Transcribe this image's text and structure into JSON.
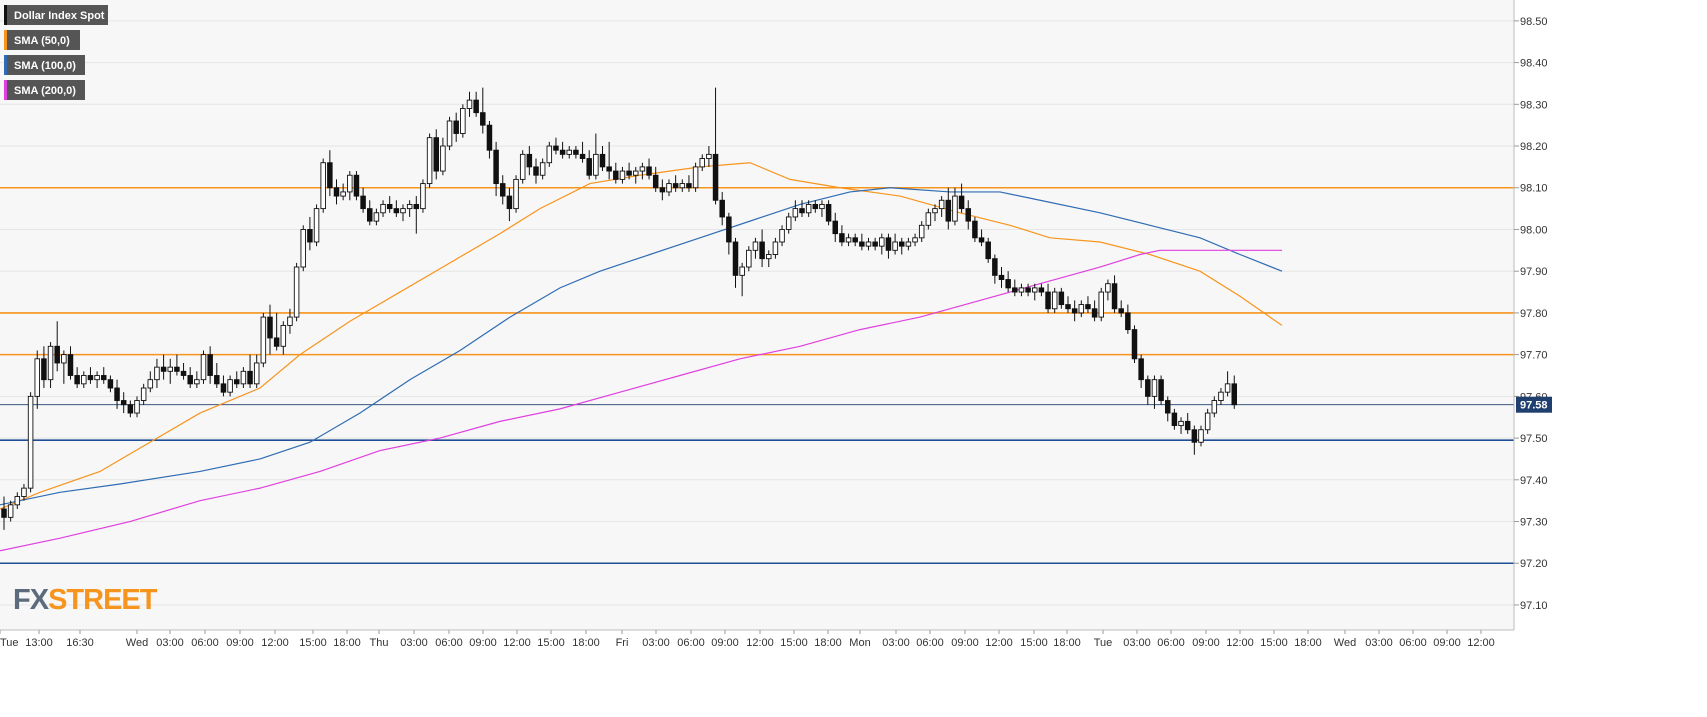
{
  "chart_data": {
    "type": "candlestick",
    "instrument": "Dollar Index Spot",
    "legend": [
      {
        "label": "Dollar Index Spot",
        "color": "#111111"
      },
      {
        "label": "SMA (50,0)",
        "color": "#f7941d"
      },
      {
        "label": "SMA (100,0)",
        "color": "#2f6cb3"
      },
      {
        "label": "SMA (200,0)",
        "color": "#e040e0"
      }
    ],
    "ylim": [
      97.04,
      98.55
    ],
    "y_ticks": [
      "98.50",
      "98.40",
      "98.30",
      "98.20",
      "98.10",
      "98.00",
      "97.90",
      "97.80",
      "97.70",
      "97.60",
      "97.50",
      "97.40",
      "97.30",
      "97.20",
      "97.10"
    ],
    "x_ticks": [
      "Tue",
      "13:00",
      "16:30",
      "Wed",
      "03:00",
      "06:00",
      "09:00",
      "12:00",
      "15:00",
      "18:00",
      "Thu",
      "03:00",
      "06:00",
      "09:00",
      "12:00",
      "15:00",
      "18:00",
      "Fri",
      "03:00",
      "06:00",
      "09:00",
      "12:00",
      "15:00",
      "18:00",
      "Mon",
      "03:00",
      "06:00",
      "09:00",
      "12:00",
      "15:00",
      "18:00",
      "Tue",
      "03:00",
      "06:00",
      "09:00",
      "12:00",
      "15:00",
      "18:00",
      "Wed",
      "03:00",
      "06:00",
      "09:00",
      "12:00"
    ],
    "last_price": "97.58",
    "horizontal_levels": [
      {
        "value": 98.1,
        "color": "#f7941d"
      },
      {
        "value": 97.8,
        "color": "#f7941d"
      },
      {
        "value": 97.7,
        "color": "#f7941d"
      },
      {
        "value": 97.495,
        "color": "#1f4e96"
      },
      {
        "value": 97.2,
        "color": "#1f4e96"
      }
    ],
    "ohlc": [
      [
        97.33,
        97.36,
        97.28,
        97.31
      ],
      [
        97.31,
        97.35,
        97.3,
        97.34
      ],
      [
        97.34,
        97.37,
        97.33,
        97.36
      ],
      [
        97.36,
        97.39,
        97.35,
        97.38
      ],
      [
        97.38,
        97.61,
        97.37,
        97.6
      ],
      [
        97.6,
        97.71,
        97.57,
        97.69
      ],
      [
        97.69,
        97.72,
        97.62,
        97.64
      ],
      [
        97.64,
        97.73,
        97.62,
        97.72
      ],
      [
        97.72,
        97.78,
        97.66,
        97.68
      ],
      [
        97.68,
        97.71,
        97.63,
        97.7
      ],
      [
        97.7,
        97.72,
        97.64,
        97.65
      ],
      [
        97.65,
        97.67,
        97.62,
        97.63
      ],
      [
        97.63,
        97.66,
        97.62,
        97.65
      ],
      [
        97.65,
        97.67,
        97.63,
        97.64
      ],
      [
        97.64,
        97.66,
        97.62,
        97.65
      ],
      [
        97.65,
        97.67,
        97.63,
        97.64
      ],
      [
        97.64,
        97.65,
        97.61,
        97.62
      ],
      [
        97.62,
        97.64,
        97.57,
        97.59
      ],
      [
        97.59,
        97.61,
        97.56,
        97.58
      ],
      [
        97.58,
        97.59,
        97.55,
        97.56
      ],
      [
        97.56,
        97.6,
        97.55,
        97.59
      ],
      [
        97.59,
        97.63,
        97.58,
        97.62
      ],
      [
        97.62,
        97.66,
        97.61,
        97.64
      ],
      [
        97.64,
        97.69,
        97.62,
        97.67
      ],
      [
        97.67,
        97.7,
        97.64,
        97.66
      ],
      [
        97.66,
        97.69,
        97.63,
        97.67
      ],
      [
        97.67,
        97.7,
        97.65,
        97.66
      ],
      [
        97.66,
        97.68,
        97.64,
        97.65
      ],
      [
        97.65,
        97.67,
        97.62,
        97.63
      ],
      [
        97.63,
        97.66,
        97.62,
        97.64
      ],
      [
        97.64,
        97.71,
        97.63,
        97.7
      ],
      [
        97.7,
        97.72,
        97.63,
        97.65
      ],
      [
        97.65,
        97.68,
        97.62,
        97.63
      ],
      [
        97.63,
        97.65,
        97.6,
        97.61
      ],
      [
        97.61,
        97.65,
        97.6,
        97.64
      ],
      [
        97.64,
        97.66,
        97.62,
        97.63
      ],
      [
        97.63,
        97.67,
        97.62,
        97.66
      ],
      [
        97.66,
        97.7,
        97.62,
        97.63
      ],
      [
        97.63,
        97.7,
        97.62,
        97.68
      ],
      [
        97.68,
        97.8,
        97.67,
        97.79
      ],
      [
        97.79,
        97.82,
        97.7,
        97.74
      ],
      [
        97.74,
        97.8,
        97.71,
        97.72
      ],
      [
        97.72,
        97.78,
        97.7,
        97.77
      ],
      [
        97.77,
        97.81,
        97.75,
        97.79
      ],
      [
        97.79,
        97.92,
        97.78,
        97.91
      ],
      [
        97.91,
        98.01,
        97.9,
        98.0
      ],
      [
        98.0,
        98.03,
        97.95,
        97.97
      ],
      [
        97.97,
        98.06,
        97.96,
        98.05
      ],
      [
        98.05,
        98.17,
        98.04,
        98.16
      ],
      [
        98.16,
        98.19,
        98.08,
        98.1
      ],
      [
        98.1,
        98.12,
        98.06,
        98.08
      ],
      [
        98.08,
        98.11,
        98.07,
        98.09
      ],
      [
        98.09,
        98.14,
        98.07,
        98.13
      ],
      [
        98.13,
        98.14,
        98.07,
        98.08
      ],
      [
        98.08,
        98.1,
        98.04,
        98.05
      ],
      [
        98.05,
        98.07,
        98.01,
        98.02
      ],
      [
        98.02,
        98.05,
        98.01,
        98.04
      ],
      [
        98.04,
        98.07,
        98.03,
        98.06
      ],
      [
        98.06,
        98.08,
        98.04,
        98.05
      ],
      [
        98.05,
        98.07,
        98.03,
        98.04
      ],
      [
        98.04,
        98.06,
        98.02,
        98.05
      ],
      [
        98.05,
        98.07,
        98.03,
        98.06
      ],
      [
        98.06,
        98.08,
        97.99,
        98.05
      ],
      [
        98.05,
        98.12,
        98.04,
        98.11
      ],
      [
        98.11,
        98.23,
        98.1,
        98.22
      ],
      [
        98.22,
        98.24,
        98.12,
        98.14
      ],
      [
        98.14,
        98.22,
        98.13,
        98.2
      ],
      [
        98.2,
        98.27,
        98.19,
        98.26
      ],
      [
        98.26,
        98.28,
        98.21,
        98.23
      ],
      [
        98.23,
        98.3,
        98.22,
        98.29
      ],
      [
        98.29,
        98.33,
        98.27,
        98.31
      ],
      [
        98.31,
        98.33,
        98.27,
        98.28
      ],
      [
        98.28,
        98.34,
        98.23,
        98.25
      ],
      [
        98.25,
        98.26,
        98.17,
        98.19
      ],
      [
        98.19,
        98.21,
        98.08,
        98.11
      ],
      [
        98.11,
        98.13,
        98.06,
        98.08
      ],
      [
        98.08,
        98.1,
        98.02,
        98.05
      ],
      [
        98.05,
        98.13,
        98.04,
        98.12
      ],
      [
        98.12,
        98.19,
        98.11,
        98.18
      ],
      [
        98.18,
        98.2,
        98.13,
        98.15
      ],
      [
        98.15,
        98.17,
        98.11,
        98.13
      ],
      [
        98.13,
        98.17,
        98.12,
        98.16
      ],
      [
        98.16,
        98.21,
        98.15,
        98.2
      ],
      [
        98.2,
        98.22,
        98.18,
        98.19
      ],
      [
        98.19,
        98.21,
        98.17,
        98.18
      ],
      [
        98.18,
        98.2,
        98.17,
        98.19
      ],
      [
        98.19,
        98.2,
        98.17,
        98.18
      ],
      [
        98.18,
        98.21,
        98.16,
        98.17
      ],
      [
        98.17,
        98.19,
        98.12,
        98.13
      ],
      [
        98.13,
        98.23,
        98.12,
        98.18
      ],
      [
        98.18,
        98.2,
        98.14,
        98.15
      ],
      [
        98.15,
        98.21,
        98.12,
        98.14
      ],
      [
        98.14,
        98.16,
        98.11,
        98.12
      ],
      [
        98.12,
        98.15,
        98.11,
        98.14
      ],
      [
        98.14,
        98.16,
        98.12,
        98.13
      ],
      [
        98.13,
        98.15,
        98.11,
        98.14
      ],
      [
        98.14,
        98.16,
        98.12,
        98.15
      ],
      [
        98.15,
        98.17,
        98.12,
        98.13
      ],
      [
        98.13,
        98.15,
        98.09,
        98.1
      ],
      [
        98.1,
        98.12,
        98.07,
        98.09
      ],
      [
        98.09,
        98.12,
        98.08,
        98.11
      ],
      [
        98.11,
        98.13,
        98.09,
        98.1
      ],
      [
        98.1,
        98.12,
        98.09,
        98.11
      ],
      [
        98.11,
        98.13,
        98.09,
        98.1
      ],
      [
        98.1,
        98.16,
        98.09,
        98.15
      ],
      [
        98.15,
        98.18,
        98.14,
        98.17
      ],
      [
        98.17,
        98.2,
        98.15,
        98.18
      ],
      [
        98.18,
        98.34,
        98.06,
        98.07
      ],
      [
        98.07,
        98.09,
        98.01,
        98.03
      ],
      [
        98.03,
        98.04,
        97.94,
        97.97
      ],
      [
        97.97,
        97.98,
        97.86,
        97.89
      ],
      [
        97.89,
        97.92,
        97.84,
        97.91
      ],
      [
        97.91,
        97.96,
        97.9,
        97.95
      ],
      [
        97.95,
        97.98,
        97.93,
        97.97
      ],
      [
        97.97,
        98.0,
        97.91,
        97.93
      ],
      [
        97.93,
        97.95,
        97.91,
        97.94
      ],
      [
        97.94,
        97.98,
        97.93,
        97.97
      ],
      [
        97.97,
        98.01,
        97.96,
        98.0
      ],
      [
        98.0,
        98.04,
        97.99,
        98.03
      ],
      [
        98.03,
        98.07,
        98.02,
        98.05
      ],
      [
        98.05,
        98.07,
        98.03,
        98.04
      ],
      [
        98.04,
        98.07,
        98.03,
        98.06
      ],
      [
        98.06,
        98.07,
        98.04,
        98.05
      ],
      [
        98.05,
        98.07,
        98.03,
        98.06
      ],
      [
        98.06,
        98.07,
        98.01,
        98.02
      ],
      [
        98.02,
        98.04,
        97.97,
        97.99
      ],
      [
        97.99,
        98.01,
        97.96,
        97.97
      ],
      [
        97.97,
        97.99,
        97.96,
        97.98
      ],
      [
        97.98,
        97.99,
        97.96,
        97.97
      ],
      [
        97.97,
        97.99,
        97.95,
        97.96
      ],
      [
        97.96,
        97.98,
        97.95,
        97.97
      ],
      [
        97.97,
        97.98,
        97.95,
        97.96
      ],
      [
        97.96,
        97.99,
        97.94,
        97.98
      ],
      [
        97.98,
        97.99,
        97.93,
        97.95
      ],
      [
        97.95,
        97.99,
        97.94,
        97.97
      ],
      [
        97.97,
        97.98,
        97.94,
        97.96
      ],
      [
        97.96,
        97.98,
        97.95,
        97.97
      ],
      [
        97.97,
        97.99,
        97.96,
        97.98
      ],
      [
        97.98,
        98.02,
        97.97,
        98.01
      ],
      [
        98.01,
        98.05,
        98.0,
        98.04
      ],
      [
        98.04,
        98.06,
        98.02,
        98.05
      ],
      [
        98.05,
        98.08,
        98.03,
        98.07
      ],
      [
        98.07,
        98.1,
        98.0,
        98.02
      ],
      [
        98.02,
        98.1,
        98.01,
        98.08
      ],
      [
        98.08,
        98.11,
        98.04,
        98.05
      ],
      [
        98.05,
        98.07,
        98.0,
        98.02
      ],
      [
        98.02,
        98.03,
        97.97,
        97.98
      ],
      [
        97.98,
        98.0,
        97.96,
        97.97
      ],
      [
        97.97,
        97.98,
        97.92,
        97.93
      ],
      [
        97.93,
        97.94,
        97.87,
        97.89
      ],
      [
        97.89,
        97.91,
        97.86,
        97.88
      ],
      [
        97.88,
        97.9,
        97.85,
        97.86
      ],
      [
        97.86,
        97.88,
        97.84,
        97.85
      ],
      [
        97.85,
        97.87,
        97.84,
        97.86
      ],
      [
        97.86,
        97.87,
        97.84,
        97.85
      ],
      [
        97.85,
        97.87,
        97.83,
        97.86
      ],
      [
        97.86,
        97.87,
        97.84,
        97.85
      ],
      [
        97.85,
        97.87,
        97.8,
        97.81
      ],
      [
        97.81,
        97.86,
        97.8,
        97.85
      ],
      [
        97.85,
        97.86,
        97.81,
        97.82
      ],
      [
        97.82,
        97.84,
        97.8,
        97.81
      ],
      [
        97.81,
        97.83,
        97.78,
        97.8
      ],
      [
        97.8,
        97.83,
        97.79,
        97.82
      ],
      [
        97.82,
        97.84,
        97.8,
        97.81
      ],
      [
        97.81,
        97.83,
        97.78,
        97.79
      ],
      [
        97.79,
        97.86,
        97.78,
        97.85
      ],
      [
        97.85,
        97.88,
        97.83,
        97.87
      ],
      [
        97.87,
        97.89,
        97.8,
        97.81
      ],
      [
        97.81,
        97.83,
        97.79,
        97.8
      ],
      [
        97.8,
        97.82,
        97.75,
        97.76
      ],
      [
        97.76,
        97.77,
        97.68,
        97.69
      ],
      [
        97.69,
        97.7,
        97.62,
        97.64
      ],
      [
        97.64,
        97.65,
        97.58,
        97.6
      ],
      [
        97.6,
        97.65,
        97.57,
        97.64
      ],
      [
        97.64,
        97.65,
        97.58,
        97.59
      ],
      [
        97.59,
        97.6,
        97.54,
        97.56
      ],
      [
        97.56,
        97.57,
        97.52,
        97.53
      ],
      [
        97.53,
        97.55,
        97.51,
        97.54
      ],
      [
        97.54,
        97.56,
        97.51,
        97.52
      ],
      [
        97.52,
        97.53,
        97.46,
        97.49
      ],
      [
        97.49,
        97.53,
        97.48,
        97.52
      ],
      [
        97.52,
        97.57,
        97.51,
        97.56
      ],
      [
        97.56,
        97.6,
        97.55,
        97.59
      ],
      [
        97.59,
        97.62,
        97.58,
        97.61
      ],
      [
        97.61,
        97.66,
        97.6,
        97.63
      ],
      [
        97.63,
        97.65,
        97.57,
        97.58
      ]
    ],
    "sma50": [
      [
        0,
        97.33
      ],
      [
        40,
        97.37
      ],
      [
        100,
        97.42
      ],
      [
        150,
        97.49
      ],
      [
        200,
        97.56
      ],
      [
        260,
        97.62
      ],
      [
        300,
        97.7
      ],
      [
        350,
        97.78
      ],
      [
        400,
        97.85
      ],
      [
        450,
        97.92
      ],
      [
        500,
        97.99
      ],
      [
        540,
        98.05
      ],
      [
        590,
        98.11
      ],
      [
        640,
        98.13
      ],
      [
        700,
        98.15
      ],
      [
        750,
        98.16
      ],
      [
        790,
        98.12
      ],
      [
        840,
        98.1
      ],
      [
        900,
        98.08
      ],
      [
        960,
        98.04
      ],
      [
        1010,
        98.01
      ],
      [
        1050,
        97.98
      ],
      [
        1100,
        97.97
      ],
      [
        1150,
        97.94
      ],
      [
        1200,
        97.9
      ],
      [
        1240,
        97.84
      ],
      [
        1282,
        97.77
      ]
    ],
    "sma100": [
      [
        0,
        97.34
      ],
      [
        60,
        97.37
      ],
      [
        120,
        97.39
      ],
      [
        200,
        97.42
      ],
      [
        260,
        97.45
      ],
      [
        310,
        97.49
      ],
      [
        360,
        97.56
      ],
      [
        410,
        97.64
      ],
      [
        460,
        97.71
      ],
      [
        510,
        97.79
      ],
      [
        560,
        97.86
      ],
      [
        600,
        97.9
      ],
      [
        650,
        97.94
      ],
      [
        700,
        97.98
      ],
      [
        750,
        98.02
      ],
      [
        800,
        98.06
      ],
      [
        850,
        98.09
      ],
      [
        890,
        98.1
      ],
      [
        950,
        98.09
      ],
      [
        1000,
        98.09
      ],
      [
        1040,
        98.07
      ],
      [
        1100,
        98.04
      ],
      [
        1150,
        98.01
      ],
      [
        1200,
        97.98
      ],
      [
        1240,
        97.94
      ],
      [
        1282,
        97.9
      ]
    ],
    "sma200": [
      [
        0,
        97.23
      ],
      [
        60,
        97.26
      ],
      [
        130,
        97.3
      ],
      [
        200,
        97.35
      ],
      [
        260,
        97.38
      ],
      [
        320,
        97.42
      ],
      [
        380,
        97.47
      ],
      [
        440,
        97.5
      ],
      [
        500,
        97.54
      ],
      [
        560,
        97.57
      ],
      [
        620,
        97.61
      ],
      [
        680,
        97.65
      ],
      [
        740,
        97.69
      ],
      [
        800,
        97.72
      ],
      [
        860,
        97.76
      ],
      [
        920,
        97.79
      ],
      [
        980,
        97.83
      ],
      [
        1040,
        97.87
      ],
      [
        1100,
        97.91
      ],
      [
        1140,
        97.94
      ],
      [
        1160,
        97.95
      ],
      [
        1200,
        97.95
      ],
      [
        1282,
        97.95
      ]
    ]
  },
  "logo": {
    "part1": "FX",
    "part2": "STREET"
  }
}
